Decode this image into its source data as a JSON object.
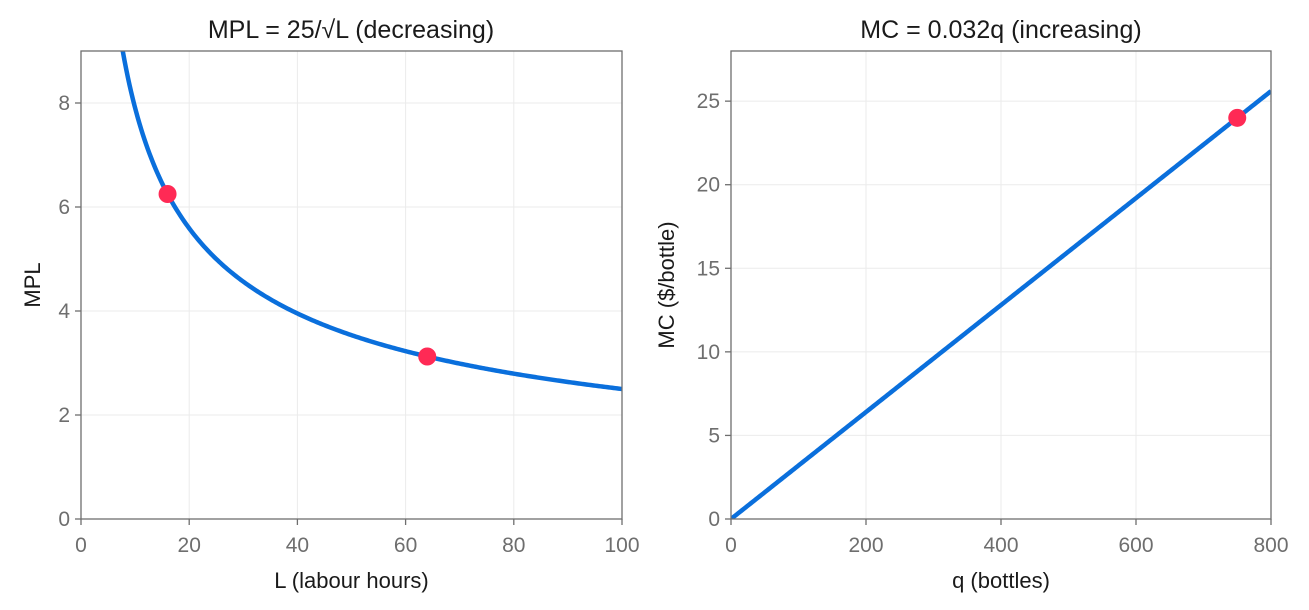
{
  "chart_data": [
    {
      "type": "line",
      "title": "MPL = 25/√L  (decreasing)",
      "xlabel": "L (labour hours)",
      "ylabel": "MPL",
      "xlim": [
        0,
        100
      ],
      "ylim": [
        0,
        9
      ],
      "xticks": [
        0,
        20,
        40,
        60,
        80,
        100
      ],
      "yticks": [
        0,
        2,
        4,
        6,
        8
      ],
      "grid": true,
      "colors": {
        "line": "#0a6fdc",
        "points": "#ff2a55"
      },
      "series": [
        {
          "function": "25/sqrt(L)",
          "x_range": [
            7.72,
            100
          ]
        }
      ],
      "points": [
        {
          "x": 16,
          "y": 6.25
        },
        {
          "x": 64,
          "y": 3.125
        }
      ]
    },
    {
      "type": "line",
      "title": "MC = 0.032q  (increasing)",
      "xlabel": "q (bottles)",
      "ylabel": "MC ($/bottle)",
      "xlim": [
        0,
        800
      ],
      "ylim": [
        0,
        28
      ],
      "xticks": [
        0,
        200,
        400,
        600,
        800
      ],
      "yticks": [
        0,
        5,
        10,
        15,
        20,
        25
      ],
      "grid": true,
      "colors": {
        "line": "#0a6fdc",
        "points": "#ff2a55"
      },
      "series": [
        {
          "function": "0.032*q",
          "x_range": [
            0,
            800
          ]
        }
      ],
      "points": [
        {
          "x": 750,
          "y": 24
        }
      ]
    }
  ]
}
